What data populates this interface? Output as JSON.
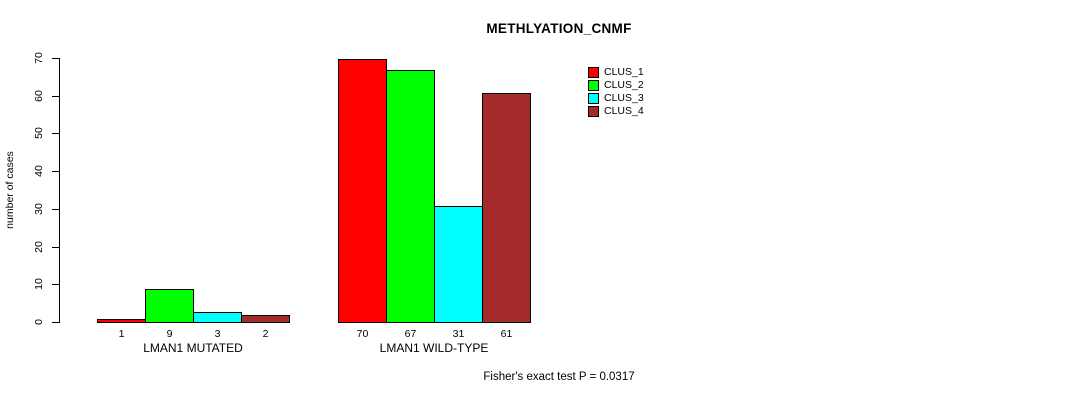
{
  "chart_data": {
    "type": "bar",
    "title": "METHLYATION_CNMF",
    "ylabel": "number of cases",
    "xlabel": "",
    "ylim": [
      0,
      70
    ],
    "yticks": [
      0,
      10,
      20,
      30,
      40,
      50,
      60,
      70
    ],
    "grid": false,
    "legend_position": "top-right",
    "categories": [
      "LMAN1 MUTATED",
      "LMAN1 WILD-TYPE"
    ],
    "series": [
      {
        "name": "CLUS_1",
        "color": "#ff0000",
        "values": [
          1,
          70
        ]
      },
      {
        "name": "CLUS_2",
        "color": "#00ff00",
        "values": [
          9,
          67
        ]
      },
      {
        "name": "CLUS_3",
        "color": "#00ffff",
        "values": [
          3,
          31
        ]
      },
      {
        "name": "CLUS_4",
        "color": "#a52a2a",
        "values": [
          2,
          61
        ]
      }
    ],
    "bar_value_labels": [
      [
        1,
        9,
        3,
        2
      ],
      [
        70,
        67,
        31,
        61
      ]
    ],
    "annotation": "Fisher's exact test P = 0.0317"
  }
}
